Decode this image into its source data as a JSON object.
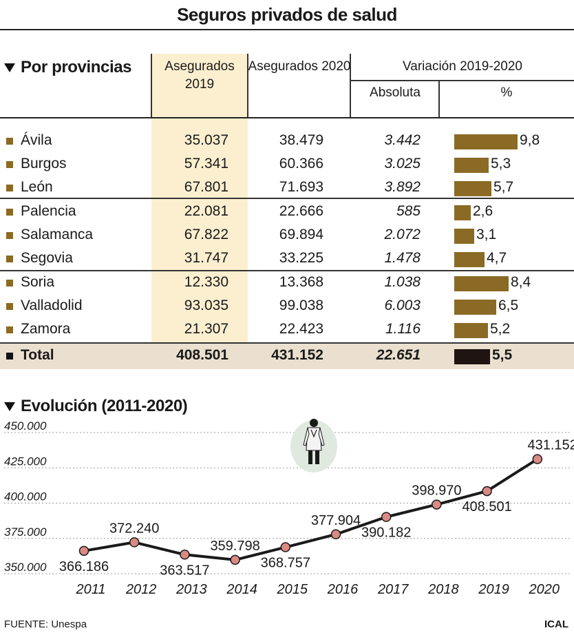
{
  "title": "Seguros privados de salud",
  "table": {
    "section_title": "Por provincias",
    "headers": {
      "insured_2019": "Asegurados 2019",
      "insured_2020": "Asegurados 2020",
      "variation": "Variación 2019-2020",
      "absolute": "Absoluta",
      "percent": "%"
    },
    "bar_color": "#8a6a24",
    "total_bar_color": "#1f1412",
    "highlight_color": "#fbefcf",
    "rows": [
      {
        "name": "Ávila",
        "v2019": "35.037",
        "v2020": "38.479",
        "abs": "3.442",
        "pct": "9,8",
        "pct_value": 9.8
      },
      {
        "name": "Burgos",
        "v2019": "57.341",
        "v2020": "60.366",
        "abs": "3.025",
        "pct": "5,3",
        "pct_value": 5.3
      },
      {
        "name": "León",
        "v2019": "67.801",
        "v2020": "71.693",
        "abs": "3.892",
        "pct": "5,7",
        "pct_value": 5.7
      },
      {
        "name": "Palencia",
        "v2019": "22.081",
        "v2020": "22.666",
        "abs": "585",
        "pct": "2,6",
        "pct_value": 2.6
      },
      {
        "name": "Salamanca",
        "v2019": "67.822",
        "v2020": "69.894",
        "abs": "2.072",
        "pct": "3,1",
        "pct_value": 3.1
      },
      {
        "name": "Segovia",
        "v2019": "31.747",
        "v2020": "33.225",
        "abs": "1.478",
        "pct": "4,7",
        "pct_value": 4.7
      },
      {
        "name": "Soria",
        "v2019": "12.330",
        "v2020": "13.368",
        "abs": "1.038",
        "pct": "8,4",
        "pct_value": 8.4
      },
      {
        "name": "Valladolid",
        "v2019": "93.035",
        "v2020": "99.038",
        "abs": "6.003",
        "pct": "6,5",
        "pct_value": 6.5
      },
      {
        "name": "Zamora",
        "v2019": "21.307",
        "v2020": "22.423",
        "abs": "1.116",
        "pct": "5,2",
        "pct_value": 5.2
      }
    ],
    "total": {
      "name": "Total",
      "v2019": "408.501",
      "v2020": "431.152",
      "abs": "22.651",
      "pct": "5,5",
      "pct_value": 5.5
    }
  },
  "chart_data": {
    "type": "line",
    "title": "Evolución (2011-2020)",
    "x": [
      "2011",
      "2012",
      "2013",
      "2014",
      "2015",
      "2016",
      "2017",
      "2018",
      "2019",
      "2020"
    ],
    "values": [
      366186,
      372240,
      363517,
      359798,
      368757,
      377904,
      390182,
      398970,
      408501,
      431152
    ],
    "labels": [
      "366.186",
      "372.240",
      "363.517",
      "359.798",
      "368.757",
      "377.904",
      "390.182",
      "398.970",
      "408.501",
      "431.152"
    ],
    "label_position": [
      "below",
      "above",
      "below",
      "above",
      "below",
      "above",
      "below",
      "above",
      "below",
      "above"
    ],
    "ylim": [
      350000,
      450000
    ],
    "yticks": [
      350000,
      375000,
      400000,
      425000,
      450000
    ],
    "ytick_labels": [
      "350.000",
      "375.000",
      "400.000",
      "425.000",
      "450.000"
    ],
    "grid": "dotted horizontal",
    "line_color": "#1a1a1a",
    "marker_color": "#d98a83"
  },
  "footer": {
    "source": "FUENTE: Unespa",
    "credit": "ICAL"
  }
}
